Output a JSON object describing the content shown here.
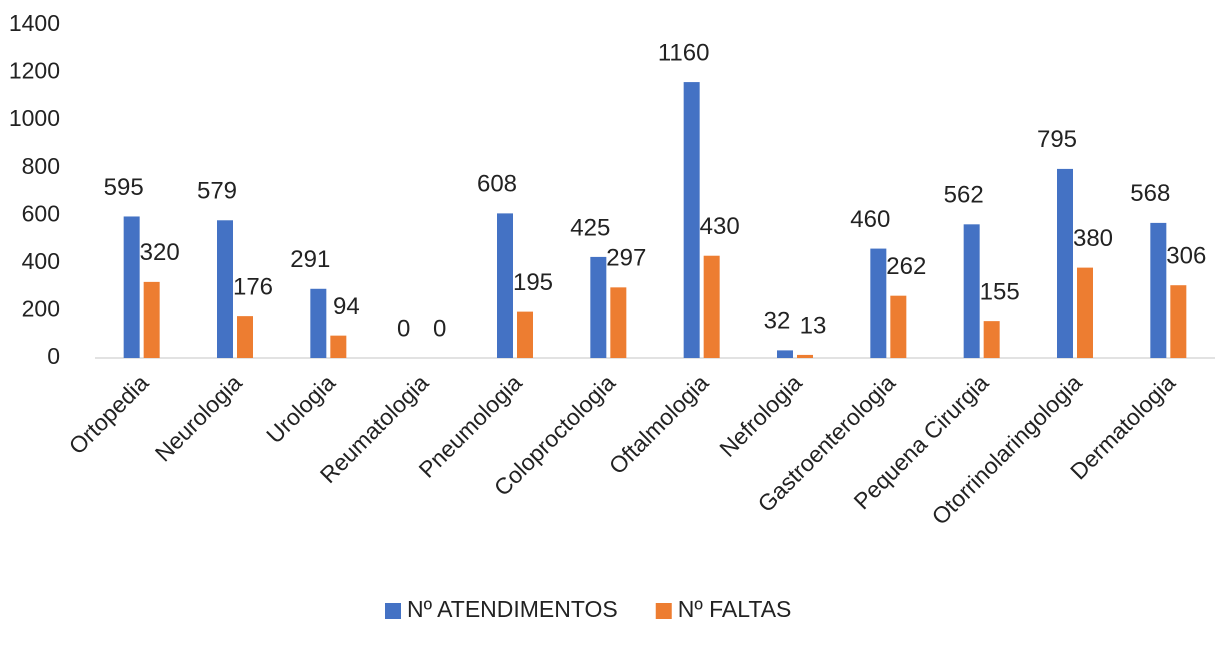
{
  "chart_data": {
    "type": "bar",
    "categories": [
      "Ortopedia",
      "Neurologia",
      "Urologia",
      "Reumatologia",
      "Pneumologia",
      "Coloproctologia",
      "Oftalmologia",
      "Nefrologia",
      "Gastroenterologia",
      "Pequena Cirurgia",
      "Otorrinolaringologia",
      "Dermatologia"
    ],
    "series": [
      {
        "name": "Nº ATENDIMENTOS",
        "color": "#4472c4",
        "values": [
          595,
          579,
          291,
          0,
          608,
          425,
          1160,
          32,
          460,
          562,
          795,
          568
        ]
      },
      {
        "name": "Nº FALTAS",
        "color": "#ed7d31",
        "values": [
          320,
          176,
          94,
          0,
          195,
          297,
          430,
          13,
          262,
          155,
          380,
          306
        ]
      }
    ],
    "ylim": [
      0,
      1400
    ],
    "yticks": [
      0,
      200,
      400,
      600,
      800,
      1000,
      1200,
      1400
    ],
    "grid": false,
    "legend": "bottom"
  }
}
